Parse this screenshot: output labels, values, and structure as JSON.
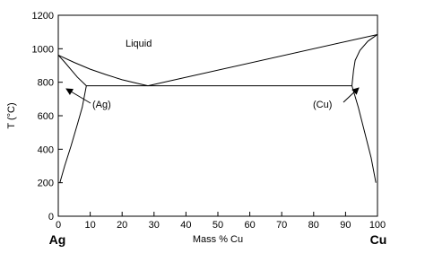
{
  "chart_data": {
    "type": "line",
    "x_label": "Mass % Cu",
    "y_label": "T (°C)",
    "left_label": "Ag",
    "right_label": "Cu",
    "annotations": [
      "Liquid",
      "(Ag)",
      "(Cu)"
    ],
    "xlim": [
      0,
      100
    ],
    "xticks": [
      0,
      10,
      20,
      30,
      40,
      50,
      60,
      70,
      80,
      90,
      100
    ],
    "ylim": [
      0,
      1200
    ],
    "yticks": [
      0,
      200,
      400,
      600,
      800,
      1000,
      1200
    ],
    "color": "#000000",
    "series": [
      {
        "x": [
          0,
          5,
          10,
          15,
          20,
          25,
          28.1
        ],
        "values": [
          962,
          918,
          878,
          845,
          815,
          792,
          779
        ]
      },
      {
        "x": [
          28.1,
          100
        ],
        "values": [
          779,
          1085
        ]
      },
      {
        "x": [
          8.8,
          92
        ],
        "values": [
          779,
          779
        ]
      },
      {
        "x": [
          0,
          2,
          4,
          6,
          8.8
        ],
        "values": [
          962,
          920,
          875,
          830,
          779
        ]
      },
      {
        "x": [
          8.8,
          7.5,
          6,
          4,
          2,
          0.5
        ],
        "values": [
          779,
          650,
          550,
          420,
          300,
          200
        ]
      },
      {
        "x": [
          100,
          97,
          94.5,
          93,
          92.5,
          92
        ],
        "values": [
          1085,
          1045,
          990,
          930,
          870,
          779
        ]
      },
      {
        "x": [
          92,
          94,
          96,
          98,
          99.5
        ],
        "values": [
          779,
          650,
          500,
          350,
          200
        ]
      }
    ]
  }
}
